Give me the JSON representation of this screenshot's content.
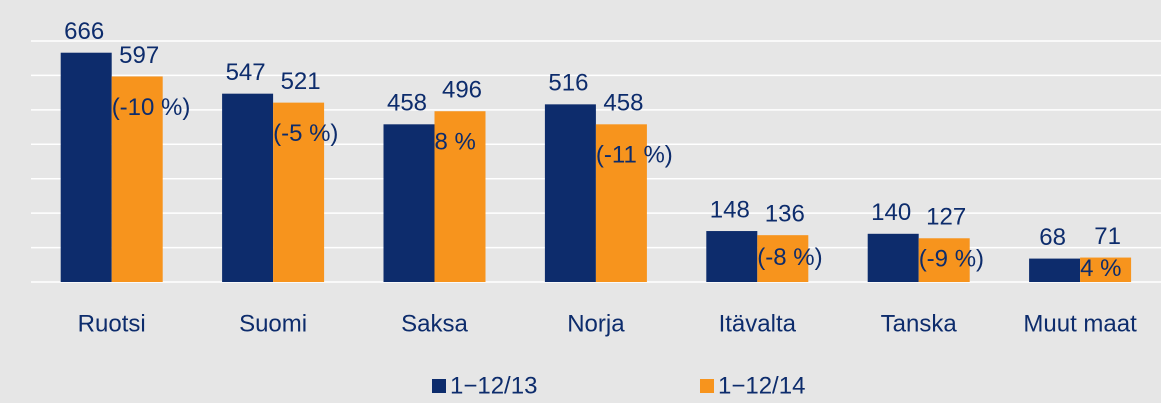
{
  "chart_data": {
    "type": "bar",
    "categories": [
      "Ruotsi",
      "Suomi",
      "Saksa",
      "Norja",
      "Itävalta",
      "Tanska",
      "Muut maat"
    ],
    "series": [
      {
        "name": "1−12/13",
        "color": "#0d2c6c",
        "values": [
          666,
          547,
          458,
          516,
          148,
          140,
          68
        ]
      },
      {
        "name": "1−12/14",
        "color": "#f7941d",
        "values": [
          597,
          521,
          496,
          458,
          136,
          127,
          71
        ]
      }
    ],
    "annotations": [
      "(-10 %)",
      "(-5 %)",
      "8 %",
      "(-11 %)",
      "(-8 %)",
      "(-9 %)",
      "4 %"
    ],
    "ylim": [
      0,
      700
    ],
    "yticks": [
      0,
      100,
      200,
      300,
      400,
      500,
      600,
      700
    ],
    "grid": true,
    "legend": "bottom"
  }
}
